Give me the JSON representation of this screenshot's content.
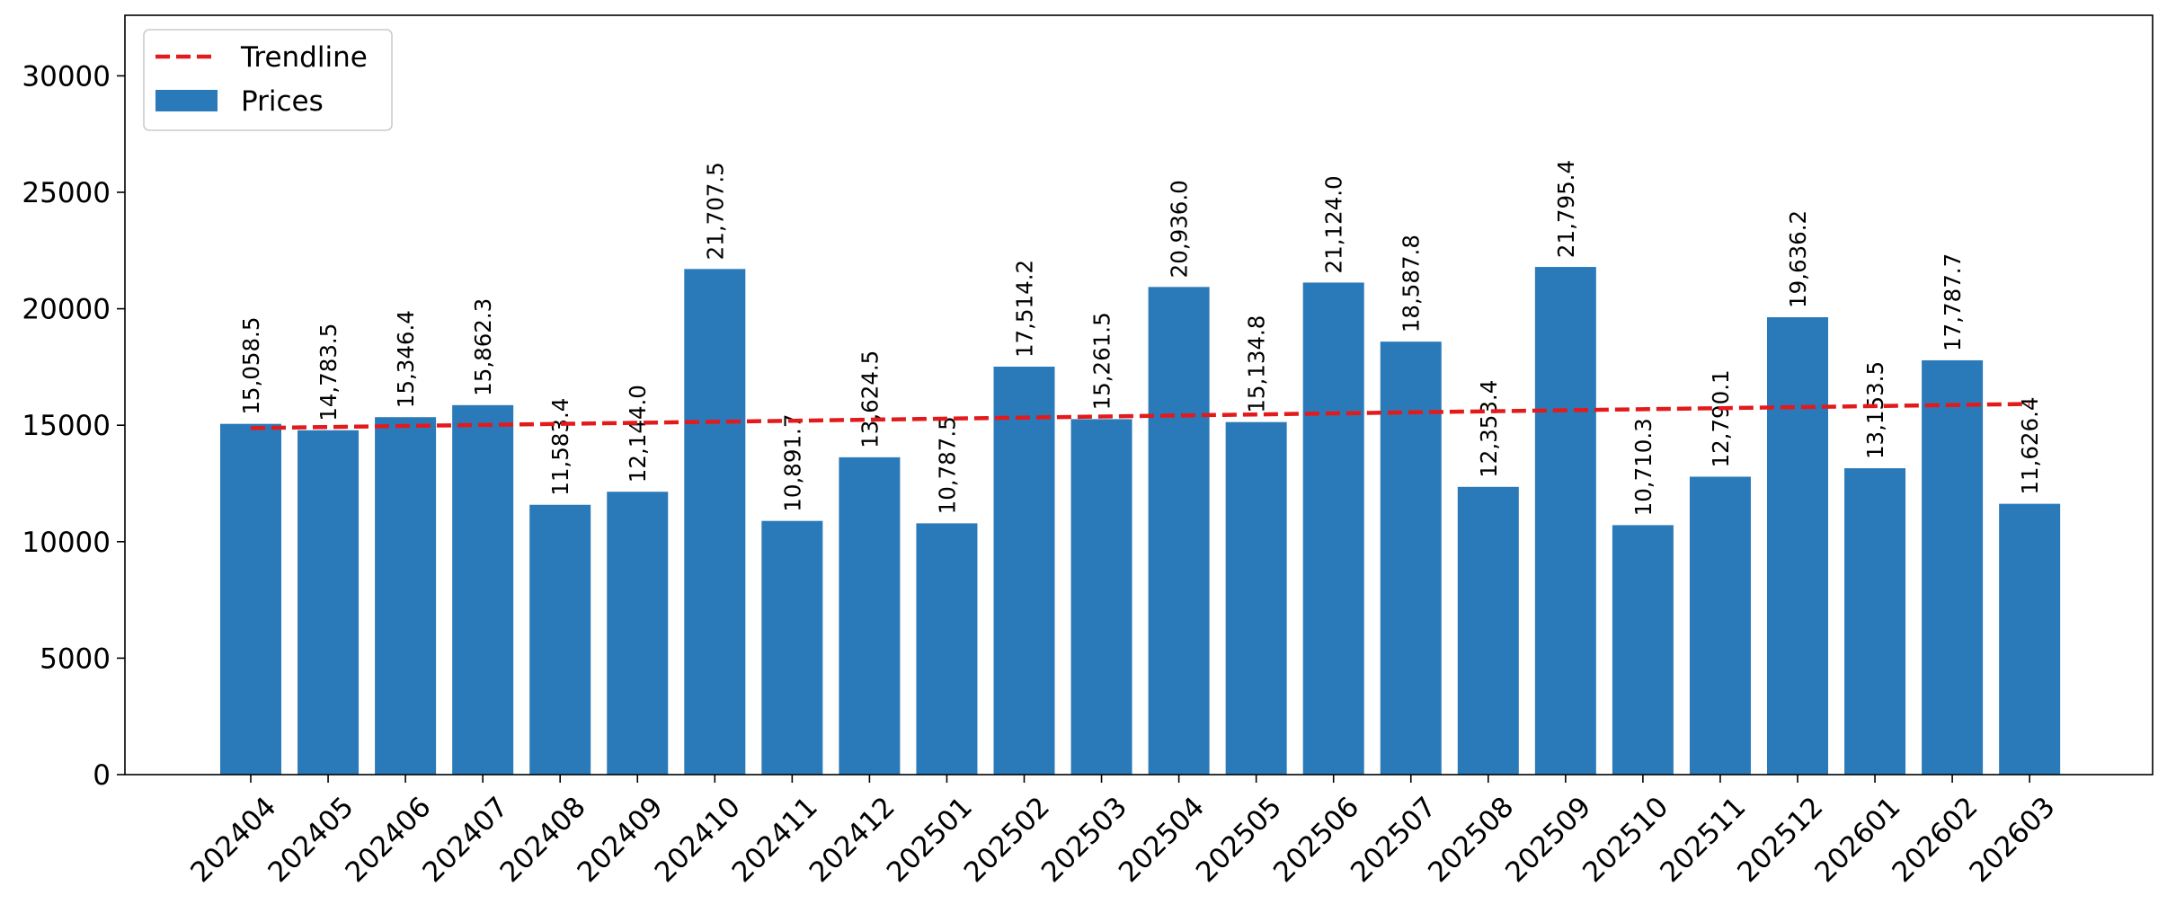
{
  "chart_data": {
    "type": "bar",
    "title": "",
    "xlabel": "",
    "ylabel": "",
    "categories": [
      "202404",
      "202405",
      "202406",
      "202407",
      "202408",
      "202409",
      "202410",
      "202411",
      "202412",
      "202501",
      "202502",
      "202503",
      "202504",
      "202505",
      "202506",
      "202507",
      "202508",
      "202509",
      "202510",
      "202511",
      "202512",
      "202601",
      "202602",
      "202603"
    ],
    "series": [
      {
        "name": "Prices",
        "type": "bar",
        "color": "#2a7ab9",
        "values": [
          15058.5,
          14783.5,
          15346.4,
          15862.3,
          11583.4,
          12144.0,
          21707.5,
          10891.7,
          13624.5,
          10787.5,
          17514.2,
          15261.5,
          20936.0,
          15134.8,
          21124.0,
          18587.8,
          12353.4,
          21795.4,
          10710.3,
          12790.1,
          19636.2,
          13153.5,
          17787.7,
          11626.4
        ],
        "labels": [
          "15,058.5",
          "14,783.5",
          "15,346.4",
          "15,862.3",
          "11,583.4",
          "12,144.0",
          "21,707.5",
          "10,891.7",
          "13,624.5",
          "10,787.5",
          "17,514.2",
          "15,261.5",
          "20,936.0",
          "15,134.8",
          "21,124.0",
          "18,587.8",
          "12,353.4",
          "21,795.4",
          "10,710.3",
          "12,790.1",
          "19,636.2",
          "13,153.5",
          "17,787.7",
          "11,626.4"
        ]
      },
      {
        "name": "Trendline",
        "type": "line",
        "style": "dashed",
        "color": "#e31a1c",
        "values": [
          14878,
          14923,
          14968,
          15013,
          15058,
          15103,
          15148,
          15193,
          15238,
          15283,
          15328,
          15373,
          15418,
          15463,
          15508,
          15553,
          15598,
          15643,
          15688,
          15733,
          15778,
          15823,
          15868,
          15913
        ]
      }
    ],
    "ylim": [
      0,
      32600
    ],
    "yticks": [
      0,
      5000,
      10000,
      15000,
      20000,
      25000,
      30000
    ],
    "ytick_labels": [
      "0",
      "5000",
      "10000",
      "15000",
      "20000",
      "25000",
      "30000"
    ],
    "legend": {
      "position": "top-left",
      "entries": [
        "Trendline",
        "Prices"
      ]
    },
    "grid": false
  }
}
